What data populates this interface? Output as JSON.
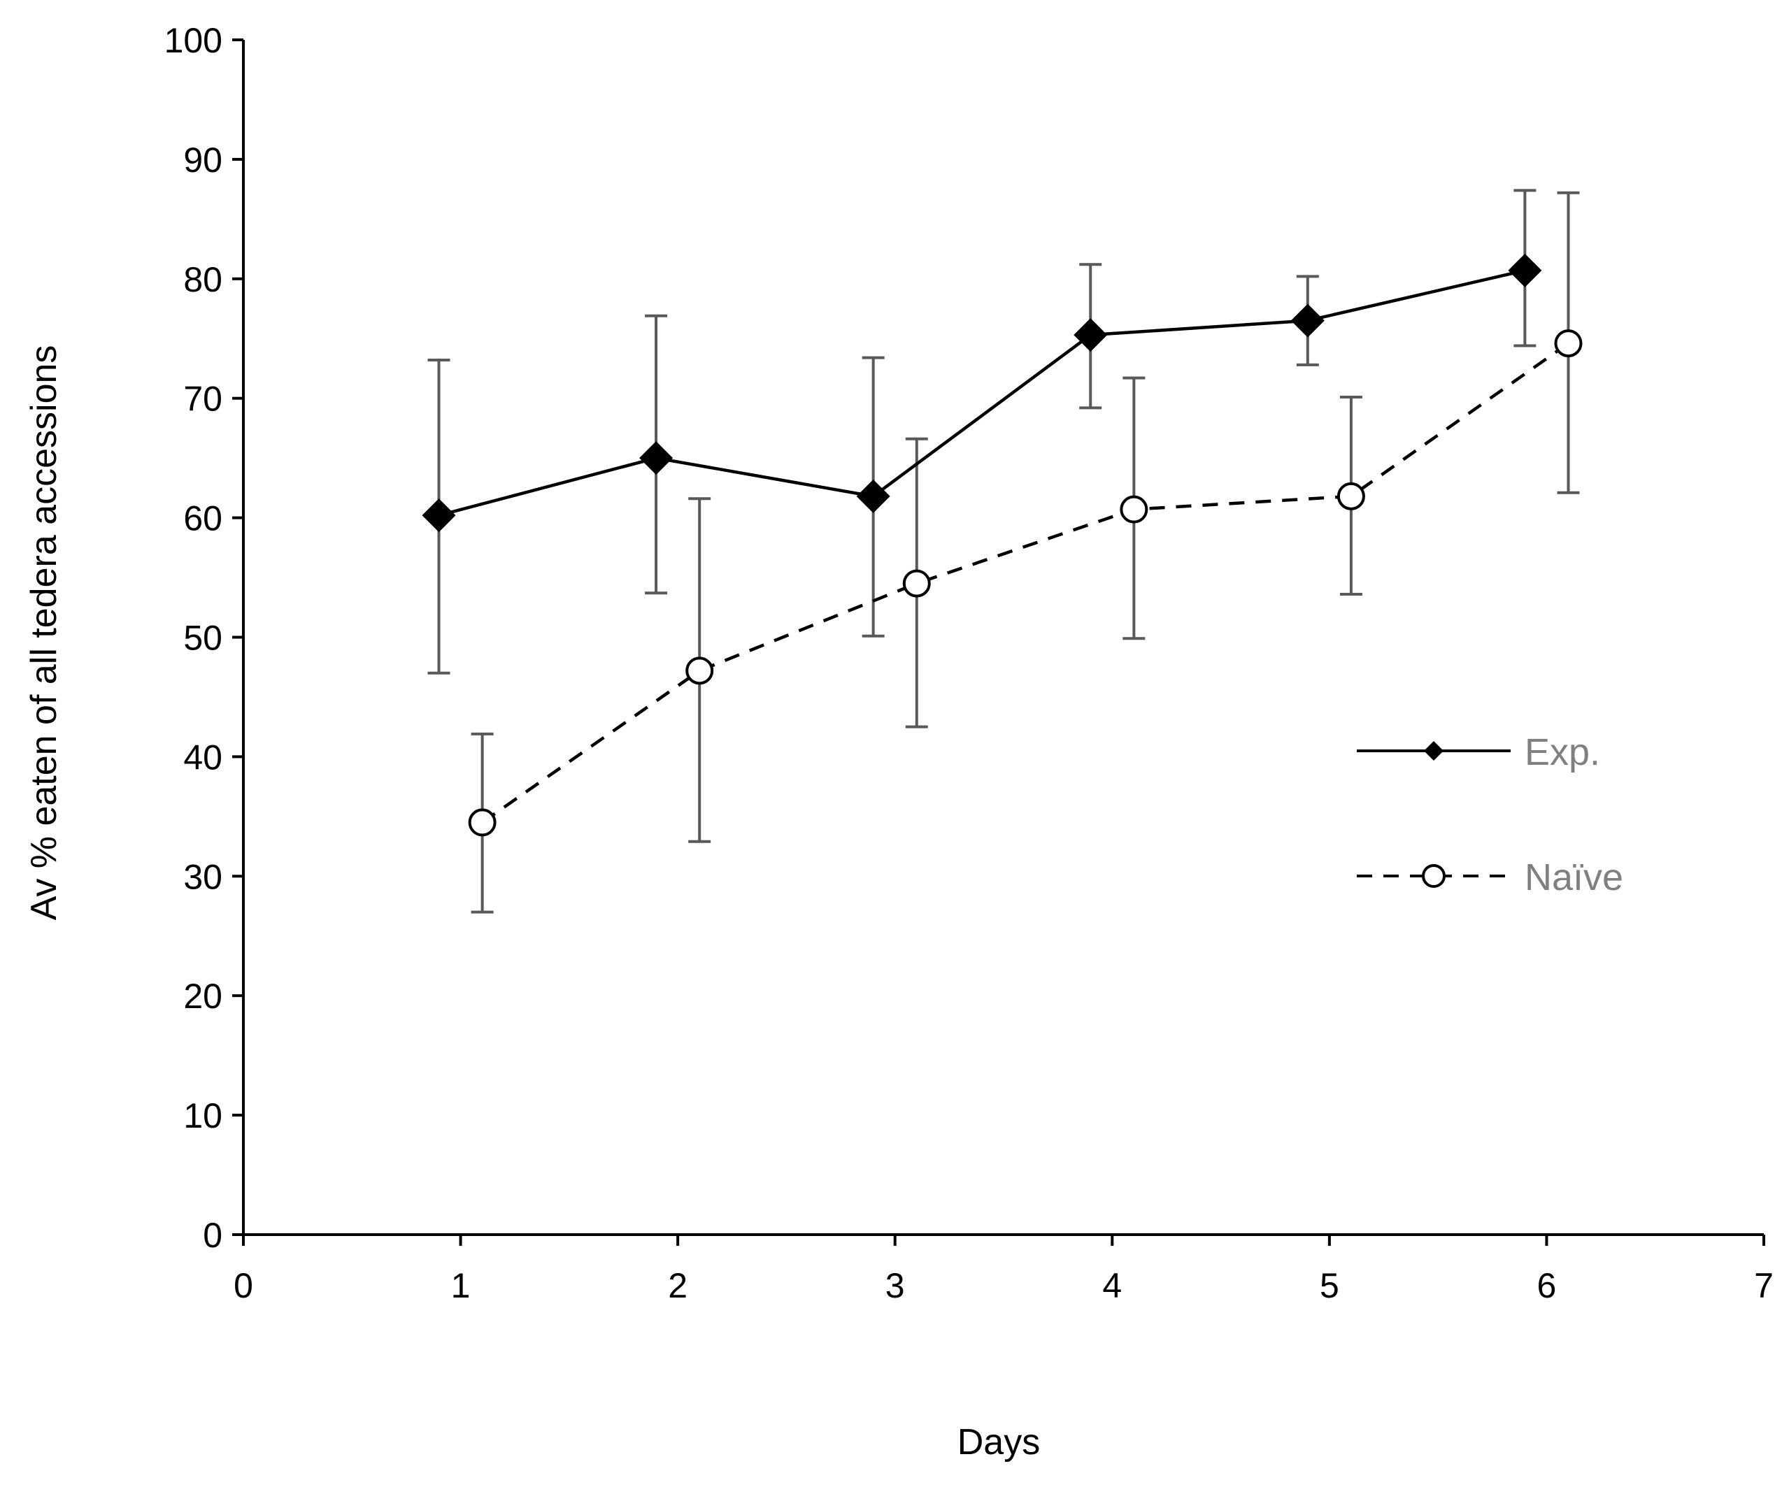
{
  "chart_data": {
    "type": "line",
    "title": "",
    "xlabel": "Days",
    "ylabel": "Av % eaten of all tedera accessions",
    "xlim": [
      0,
      7
    ],
    "ylim": [
      0,
      100
    ],
    "x_ticks": [
      "0",
      "1",
      "2",
      "3",
      "4",
      "5",
      "6",
      "7"
    ],
    "y_ticks": [
      "0",
      "10",
      "20",
      "30",
      "40",
      "50",
      "60",
      "70",
      "80",
      "90",
      "100"
    ],
    "grid": false,
    "legend_position": "right-middle",
    "series": [
      {
        "name": "Exp.",
        "line_style": "solid",
        "marker": "filled-diamond",
        "color": "#000000",
        "x": [
          0.9,
          1.9,
          2.9,
          3.9,
          4.9,
          5.9
        ],
        "y": [
          60.2,
          65.0,
          61.8,
          75.3,
          76.5,
          80.7
        ],
        "error_low": [
          47.0,
          53.7,
          50.1,
          69.2,
          72.8,
          74.4
        ],
        "error_high": [
          73.2,
          76.9,
          73.4,
          81.2,
          80.2,
          87.4
        ]
      },
      {
        "name": "Naïve",
        "line_style": "dashed",
        "marker": "open-circle",
        "color": "#000000",
        "x": [
          1.1,
          2.1,
          3.1,
          4.1,
          5.1,
          6.1
        ],
        "y": [
          34.5,
          47.2,
          54.5,
          60.7,
          61.8,
          74.6
        ],
        "error_low": [
          27.0,
          32.9,
          42.5,
          49.9,
          53.6,
          62.1
        ],
        "error_high": [
          41.9,
          61.6,
          66.6,
          71.7,
          70.1,
          87.2
        ]
      }
    ],
    "error_bar_color": "#595959"
  }
}
